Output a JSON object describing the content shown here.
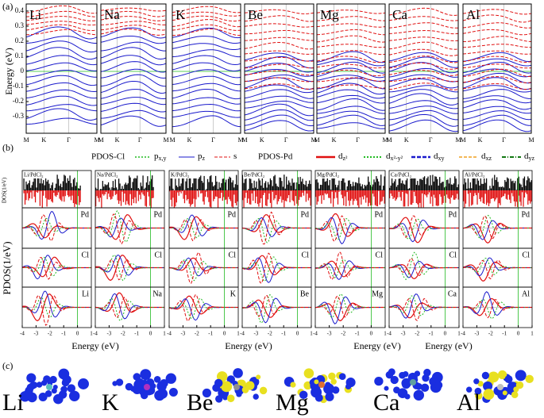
{
  "panel_a": {
    "label": "(a)",
    "y_label": "Energy (eV)",
    "yticks": [
      0.4,
      0.3,
      0.2,
      0.1,
      0,
      -0.1,
      -0.2,
      -0.3
    ],
    "ylim": [
      -0.41,
      0.447
    ],
    "x_labels": [
      "M",
      "K",
      "Γ",
      "M"
    ],
    "subpanels": [
      "Li",
      "Na",
      "K",
      "Be",
      "Mg",
      "Ca",
      "Al"
    ]
  },
  "panel_b": {
    "label": "(b)",
    "y_label": "PDOS(1/eV)",
    "dos_label": "DOS(1/eV)",
    "x_label": "Energy (eV)",
    "xticks": [
      -4,
      -3,
      -2,
      -1,
      0,
      1
    ],
    "xlim": [
      -4,
      1
    ],
    "legend": {
      "cl_title": "PDOS-Cl",
      "pd_title": "PDOS-Pd",
      "items": [
        {
          "base": "p",
          "sub": "x,y"
        },
        {
          "base": "p",
          "sub": "z"
        },
        {
          "base": "s",
          "sub": ""
        },
        {
          "base": "d",
          "sub": "z²"
        },
        {
          "base": "d",
          "sub": "x²-y²"
        },
        {
          "base": "d",
          "sub": "xy"
        },
        {
          "base": "d",
          "sub": "xz"
        },
        {
          "base": "d",
          "sub": "yz"
        }
      ]
    },
    "subpanels": [
      {
        "title": "Li/PdCl₂",
        "rows": [
          "Pd",
          "Cl",
          "Li"
        ]
      },
      {
        "title": "Na/PdCl₂",
        "rows": [
          "Pd",
          "Cl",
          "Na"
        ]
      },
      {
        "title": "K/PdCl₂",
        "rows": [
          "Pd",
          "Cl",
          "K"
        ]
      },
      {
        "title": "Be/PdCl₂",
        "rows": [
          "Pd",
          "Cl",
          "Be"
        ]
      },
      {
        "title": "Mg/PdCl₂",
        "rows": [
          "Pd",
          "Cl",
          "Mg"
        ]
      },
      {
        "title": "Ca/PdCl₂",
        "rows": [
          "Pd",
          "Cl",
          "Ca"
        ]
      },
      {
        "title": "Al/PdCl₂",
        "rows": [
          "Pd",
          "Cl",
          "Al"
        ]
      }
    ]
  },
  "panel_c": {
    "label": "(c)",
    "labels": [
      "Li",
      "K",
      "Be",
      "Mg",
      "Ca",
      "Al"
    ]
  }
}
